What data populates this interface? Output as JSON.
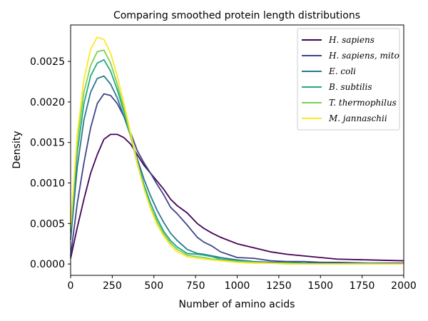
{
  "chart_data": {
    "type": "line",
    "title": "Comparing smoothed protein length distributions",
    "xlabel": "Number of amino acids",
    "ylabel": "Density",
    "xlim": [
      0,
      2000
    ],
    "ylim": [
      -0.00014,
      0.00295
    ],
    "xticks": [
      0,
      250,
      500,
      750,
      1000,
      1250,
      1500,
      1750,
      2000
    ],
    "xtick_labels": [
      "0",
      "250",
      "500",
      "750",
      "1000",
      "1250",
      "1500",
      "1750",
      "2000"
    ],
    "yticks": [
      0,
      0.0005,
      0.001,
      0.0015,
      0.002,
      0.0025
    ],
    "ytick_labels": [
      "0.0000",
      "0.0005",
      "0.0010",
      "0.0015",
      "0.0020",
      "0.0025"
    ],
    "grid": false,
    "legend_position": "top-right",
    "x": [
      0,
      40,
      80,
      120,
      160,
      200,
      240,
      280,
      320,
      360,
      400,
      440,
      480,
      520,
      560,
      600,
      640,
      700,
      760,
      800,
      850,
      900,
      1000,
      1100,
      1200,
      1300,
      1400,
      1500,
      1600,
      1800,
      2000
    ],
    "series": [
      {
        "name": "H. sapiens",
        "color": "#440154",
        "values": [
          7e-05,
          0.00045,
          0.0008,
          0.00112,
          0.00135,
          0.00154,
          0.0016,
          0.0016,
          0.00156,
          0.00148,
          0.00135,
          0.00122,
          0.00112,
          0.00102,
          0.00092,
          0.0008,
          0.00072,
          0.00063,
          0.0005,
          0.00044,
          0.00038,
          0.00033,
          0.00025,
          0.0002,
          0.00015,
          0.00012,
          0.0001,
          8e-05,
          6e-05,
          5e-05,
          4e-05
        ]
      },
      {
        "name": "H. sapiens, mito",
        "color": "#414487",
        "values": [
          0.0001,
          0.00075,
          0.00125,
          0.00168,
          0.00198,
          0.0021,
          0.00208,
          0.00198,
          0.00182,
          0.00162,
          0.0014,
          0.00125,
          0.00112,
          0.00098,
          0.00085,
          0.0007,
          0.00062,
          0.00048,
          0.00033,
          0.00027,
          0.00022,
          0.00015,
          8e-05,
          7e-05,
          4e-05,
          3e-05,
          3e-05,
          2e-05,
          2e-05,
          1e-05,
          1e-05
        ]
      },
      {
        "name": "E. coli",
        "color": "#2a788e",
        "values": [
          0.0003,
          0.0012,
          0.00178,
          0.00212,
          0.00229,
          0.00232,
          0.00222,
          0.00205,
          0.00182,
          0.00158,
          0.0013,
          0.00105,
          0.00084,
          0.00066,
          0.00051,
          0.00038,
          0.00029,
          0.00018,
          0.00013,
          0.00012,
          0.0001,
          8e-05,
          5e-05,
          3e-05,
          2e-05,
          2e-05,
          1e-05,
          1e-05,
          1e-05,
          1e-05,
          0.0
        ]
      },
      {
        "name": "B. subtilis",
        "color": "#22a884",
        "values": [
          0.0004,
          0.00138,
          0.00198,
          0.00232,
          0.00248,
          0.00252,
          0.00238,
          0.00215,
          0.00188,
          0.00158,
          0.00127,
          0.00098,
          0.00075,
          0.00056,
          0.0004,
          0.00029,
          0.00021,
          0.00013,
          0.00012,
          0.00011,
          9e-05,
          6e-05,
          4e-05,
          2e-05,
          1e-05,
          1e-05,
          1e-05,
          0.0,
          0.0,
          0.0,
          0.0
        ]
      },
      {
        "name": "T. thermophilus",
        "color": "#7ad151",
        "values": [
          0.00045,
          0.00152,
          0.00212,
          0.00245,
          0.00262,
          0.00264,
          0.00248,
          0.00222,
          0.00192,
          0.00158,
          0.00124,
          0.00094,
          0.0007,
          0.00052,
          0.00037,
          0.00026,
          0.00018,
          0.00011,
          9e-05,
          8e-05,
          6e-05,
          5e-05,
          3e-05,
          2e-05,
          1e-05,
          1e-05,
          0.0,
          0.0,
          0.0,
          0.0,
          0.0
        ]
      },
      {
        "name": "M. jannaschii",
        "color": "#fde725",
        "values": [
          0.00045,
          0.0016,
          0.00228,
          0.00265,
          0.0028,
          0.00277,
          0.0026,
          0.00232,
          0.00198,
          0.00162,
          0.00125,
          0.00093,
          0.00068,
          0.00048,
          0.00034,
          0.00023,
          0.00015,
          9e-05,
          7e-05,
          6e-05,
          5e-05,
          4e-05,
          2e-05,
          1e-05,
          1e-05,
          0.0,
          0.0,
          0.0,
          0.0,
          0.0,
          0.0
        ]
      }
    ]
  }
}
